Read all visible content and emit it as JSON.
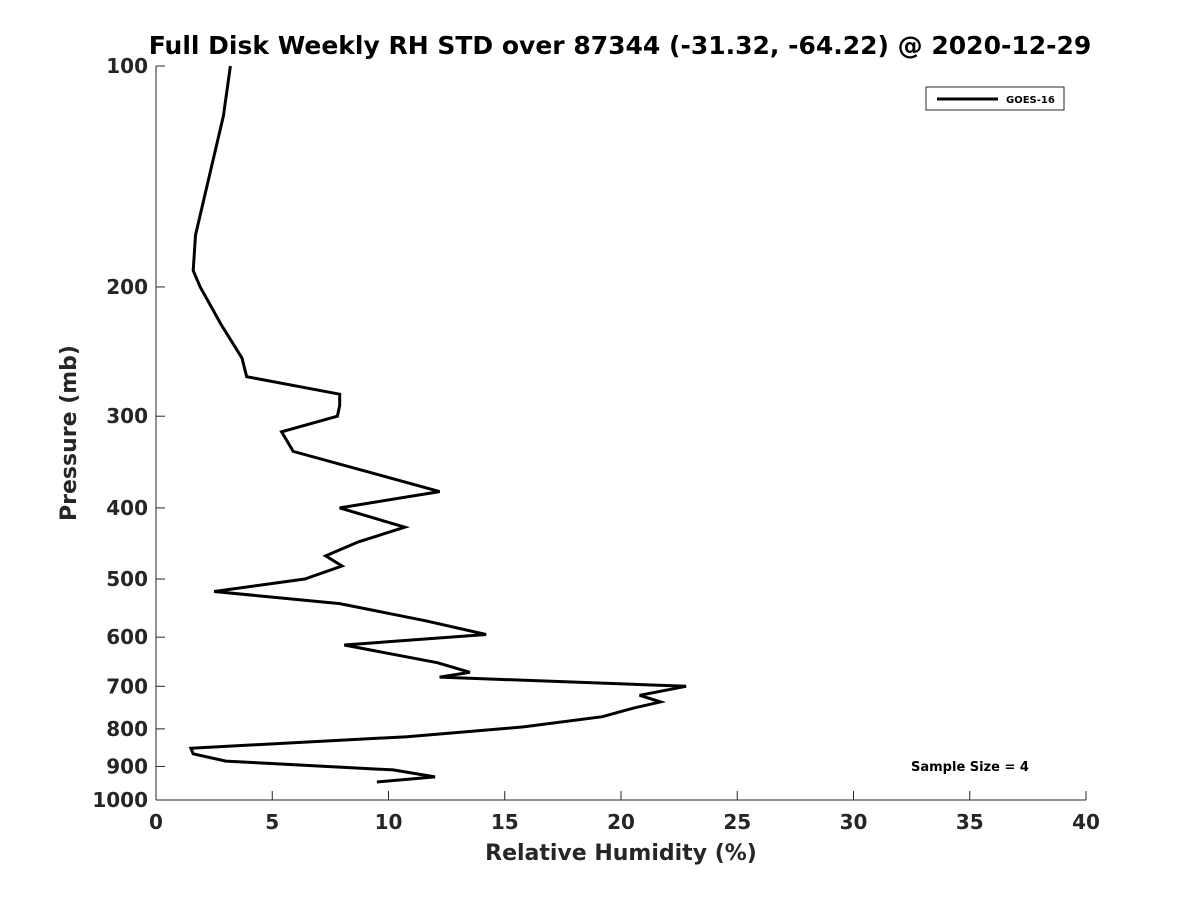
{
  "chart_data": {
    "type": "line",
    "title": "Full Disk Weekly RH STD over 87344 (-31.32, -64.22) @ 2020-12-29",
    "xlabel": "Relative Humidity (%)",
    "ylabel": "Pressure (mb)",
    "xlim": [
      0,
      40
    ],
    "ylim": [
      100,
      1000
    ],
    "yscale": "log",
    "y_reversed": true,
    "grid": false,
    "x_ticks": [
      0,
      5,
      10,
      15,
      20,
      25,
      30,
      35,
      40
    ],
    "x_tick_labels": [
      "0",
      "5",
      "10",
      "15",
      "20",
      "25",
      "30",
      "35",
      "40"
    ],
    "y_ticks": [
      100,
      200,
      300,
      400,
      500,
      600,
      700,
      800,
      900,
      1000
    ],
    "y_tick_labels": [
      "100",
      "200",
      "300",
      "400",
      "500",
      "600",
      "700",
      "800",
      "900",
      "1000"
    ],
    "legend_position": "top-right",
    "series": [
      {
        "name": "GOES-16",
        "color": "#000000",
        "x": [
          3.2,
          2.9,
          2.1,
          1.7,
          1.6,
          1.9,
          2.8,
          3.7,
          3.9,
          7.9,
          7.9,
          7.8,
          5.4,
          5.9,
          9.5,
          12.2,
          7.9,
          10.7,
          8.7,
          7.3,
          8.0,
          6.4,
          2.5,
          7.9,
          11.6,
          14.2,
          8.1,
          12.1,
          13.5,
          12.2,
          22.8,
          20.8,
          21.7,
          20.5,
          19.2,
          15.8,
          10.8,
          1.5,
          1.6,
          3.0,
          10.2,
          12.0,
          9.5
        ],
        "y": [
          100,
          117,
          150,
          170,
          190,
          200,
          225,
          250,
          265,
          280,
          290,
          300,
          315,
          335,
          360,
          380,
          400,
          425,
          445,
          465,
          480,
          500,
          520,
          540,
          570,
          595,
          615,
          650,
          670,
          680,
          700,
          720,
          735,
          750,
          770,
          795,
          820,
          850,
          865,
          885,
          910,
          930,
          945
        ]
      }
    ],
    "annotations": [
      "Sample Size = 4"
    ]
  }
}
